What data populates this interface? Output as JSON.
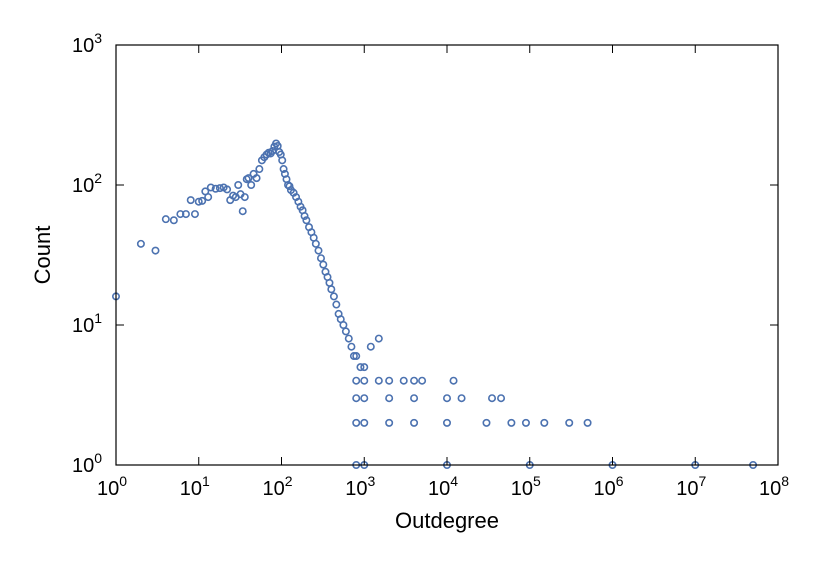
{
  "chart_data": {
    "type": "scatter",
    "xlabel": "Outdegree",
    "ylabel": "Count",
    "x_scale": "log",
    "y_scale": "log",
    "xlim": [
      1,
      100000000
    ],
    "ylim": [
      1,
      1000
    ],
    "grid": false,
    "legend": "none",
    "marker": "open-circle",
    "marker_color": "#4c72b0",
    "x_ticks": [
      {
        "base": "10",
        "exp": "0"
      },
      {
        "base": "10",
        "exp": "1"
      },
      {
        "base": "10",
        "exp": "2"
      },
      {
        "base": "10",
        "exp": "3"
      },
      {
        "base": "10",
        "exp": "4"
      },
      {
        "base": "10",
        "exp": "5"
      },
      {
        "base": "10",
        "exp": "6"
      },
      {
        "base": "10",
        "exp": "7"
      },
      {
        "base": "10",
        "exp": "8"
      }
    ],
    "y_ticks": [
      {
        "base": "10",
        "exp": "0"
      },
      {
        "base": "10",
        "exp": "1"
      },
      {
        "base": "10",
        "exp": "2"
      },
      {
        "base": "10",
        "exp": "3"
      }
    ],
    "series": [
      {
        "values": [
          [
            1,
            16
          ],
          [
            2,
            38
          ],
          [
            3,
            34
          ],
          [
            4,
            57
          ],
          [
            5,
            56
          ],
          [
            6,
            62
          ],
          [
            7,
            62
          ],
          [
            8,
            78
          ],
          [
            9,
            62
          ],
          [
            10,
            76
          ],
          [
            11,
            77
          ],
          [
            12,
            90
          ],
          [
            13,
            82
          ],
          [
            14,
            96
          ],
          [
            16,
            94
          ],
          [
            18,
            95
          ],
          [
            20,
            96
          ],
          [
            22,
            93
          ],
          [
            24,
            78
          ],
          [
            26,
            84
          ],
          [
            28,
            82
          ],
          [
            30,
            100
          ],
          [
            32,
            86
          ],
          [
            34,
            65
          ],
          [
            36,
            82
          ],
          [
            38,
            110
          ],
          [
            40,
            112
          ],
          [
            43,
            100
          ],
          [
            46,
            120
          ],
          [
            50,
            112
          ],
          [
            54,
            130
          ],
          [
            58,
            150
          ],
          [
            62,
            158
          ],
          [
            66,
            165
          ],
          [
            70,
            170
          ],
          [
            74,
            168
          ],
          [
            78,
            175
          ],
          [
            82,
            188
          ],
          [
            86,
            198
          ],
          [
            90,
            190
          ],
          [
            94,
            172
          ],
          [
            98,
            165
          ],
          [
            102,
            150
          ],
          [
            106,
            130
          ],
          [
            110,
            120
          ],
          [
            115,
            110
          ],
          [
            120,
            100
          ],
          [
            125,
            98
          ],
          [
            130,
            92
          ],
          [
            140,
            88
          ],
          [
            150,
            82
          ],
          [
            160,
            76
          ],
          [
            170,
            70
          ],
          [
            180,
            66
          ],
          [
            190,
            60
          ],
          [
            200,
            56
          ],
          [
            215,
            50
          ],
          [
            230,
            46
          ],
          [
            245,
            42
          ],
          [
            260,
            38
          ],
          [
            280,
            34
          ],
          [
            300,
            30
          ],
          [
            320,
            27
          ],
          [
            340,
            24
          ],
          [
            360,
            22
          ],
          [
            380,
            20
          ],
          [
            400,
            18
          ],
          [
            430,
            16
          ],
          [
            460,
            14
          ],
          [
            490,
            12
          ],
          [
            520,
            11
          ],
          [
            560,
            10
          ],
          [
            600,
            9
          ],
          [
            650,
            8
          ],
          [
            700,
            7
          ],
          [
            750,
            6
          ],
          [
            800,
            6
          ],
          [
            900,
            5
          ],
          [
            1000,
            5
          ],
          [
            1200,
            7
          ],
          [
            1500,
            8
          ],
          [
            800,
            4
          ],
          [
            1000,
            4
          ],
          [
            1500,
            4
          ],
          [
            2000,
            4
          ],
          [
            3000,
            4
          ],
          [
            4000,
            4
          ],
          [
            5000,
            4
          ],
          [
            12000,
            4
          ],
          [
            800,
            3
          ],
          [
            1000,
            3
          ],
          [
            2000,
            3
          ],
          [
            4000,
            3
          ],
          [
            10000,
            3
          ],
          [
            15000,
            3
          ],
          [
            35000,
            3
          ],
          [
            45000,
            3
          ],
          [
            800,
            2
          ],
          [
            1000,
            2
          ],
          [
            2000,
            2
          ],
          [
            4000,
            2
          ],
          [
            10000,
            2
          ],
          [
            30000,
            2
          ],
          [
            60000,
            2
          ],
          [
            90000,
            2
          ],
          [
            150000,
            2
          ],
          [
            300000,
            2
          ],
          [
            500000,
            2
          ],
          [
            800,
            1
          ],
          [
            1000,
            1
          ],
          [
            10000,
            1
          ],
          [
            100000,
            1
          ],
          [
            1000000,
            1
          ],
          [
            10000000,
            1
          ],
          [
            50000000,
            1
          ]
        ]
      }
    ]
  }
}
